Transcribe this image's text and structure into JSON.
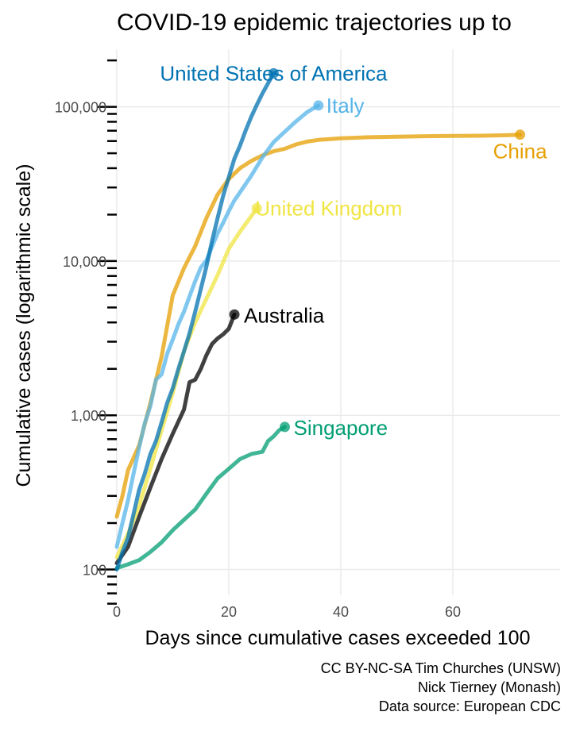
{
  "chart_data": {
    "type": "line",
    "title": "COVID-19 epidemic trajectories up to",
    "xlabel": "Days since cumulative cases exceeded 100",
    "ylabel": "Cumulative cases (logarithmic scale)",
    "y_scale": "log",
    "xlim": [
      0,
      80
    ],
    "ylim": [
      100,
      230000
    ],
    "x_ticks": [
      0,
      20,
      40,
      60
    ],
    "x_tick_labels": [
      "0",
      "20",
      "40",
      "60"
    ],
    "y_ticks": [
      100,
      1000,
      10000,
      100000
    ],
    "y_tick_labels": [
      "100",
      "1,000",
      "10,000",
      "100,000"
    ],
    "grid": true,
    "legend": "direct labels at line ends",
    "caption": [
      "CC BY-NC-SA Tim Churches (UNSW)",
      "Nick Tierney (Monash)",
      "Data source: European CDC"
    ],
    "series": [
      {
        "name": "China",
        "color": "#E69F00",
        "x": [
          0,
          1,
          2,
          4,
          6,
          8,
          10,
          12,
          14,
          16,
          18,
          20,
          22,
          24,
          26,
          28,
          30,
          32,
          34,
          36,
          40,
          45,
          50,
          55,
          60,
          65,
          70,
          72
        ],
        "y": [
          220,
          300,
          440,
          640,
          1200,
          2400,
          6000,
          9000,
          12500,
          19000,
          27000,
          34000,
          40000,
          44500,
          48500,
          51500,
          53500,
          57000,
          59500,
          61000,
          62500,
          63500,
          64000,
          64500,
          64700,
          65000,
          65500,
          66000
        ]
      },
      {
        "name": "United States of America",
        "color": "#0072B2",
        "x": [
          0,
          1,
          2,
          3,
          4,
          5,
          6,
          7,
          8,
          9,
          10,
          11,
          12,
          13,
          14,
          15,
          16,
          17,
          18,
          19,
          20,
          21,
          22,
          23,
          24,
          25,
          26,
          27,
          28
        ],
        "y": [
          100,
          130,
          160,
          230,
          330,
          420,
          560,
          680,
          900,
          1200,
          1500,
          2000,
          2600,
          3400,
          4700,
          6600,
          9200,
          13500,
          19000,
          26500,
          35000,
          46000,
          56000,
          70000,
          86000,
          103000,
          122000,
          142000,
          165000
        ]
      },
      {
        "name": "Italy",
        "color": "#56B4E9",
        "x": [
          0,
          1,
          2,
          3,
          4,
          5,
          6,
          7,
          8,
          9,
          10,
          11,
          12,
          13,
          14,
          15,
          16,
          17,
          18,
          19,
          20,
          21,
          22,
          24,
          26,
          28,
          30,
          32,
          34,
          36
        ],
        "y": [
          140,
          200,
          280,
          420,
          620,
          890,
          1150,
          1700,
          1840,
          2500,
          3100,
          3900,
          4700,
          5900,
          7400,
          9100,
          10100,
          12400,
          15100,
          17700,
          21100,
          24700,
          27900,
          35700,
          47000,
          59000,
          69000,
          80500,
          92500,
          102000
        ]
      },
      {
        "name": "United Kingdom",
        "color": "#F0E442",
        "x": [
          0,
          2,
          4,
          6,
          8,
          10,
          12,
          14,
          16,
          18,
          20,
          22,
          24,
          25
        ],
        "y": [
          120,
          170,
          260,
          450,
          800,
          1400,
          2600,
          4000,
          5700,
          8100,
          12000,
          15500,
          19500,
          22000
        ]
      },
      {
        "name": "Australia",
        "color": "#000000",
        "x": [
          0,
          2,
          4,
          6,
          8,
          10,
          12,
          13,
          14,
          15,
          16,
          17,
          18,
          19,
          20,
          21
        ],
        "y": [
          110,
          140,
          220,
          340,
          520,
          760,
          1090,
          1640,
          1700,
          2000,
          2450,
          2900,
          3150,
          3350,
          3640,
          4500
        ]
      },
      {
        "name": "Singapore",
        "color": "#009E73",
        "x": [
          0,
          2,
          4,
          6,
          8,
          10,
          12,
          14,
          16,
          18,
          20,
          22,
          24,
          26,
          27,
          28,
          29,
          30
        ],
        "y": [
          102,
          108,
          115,
          130,
          150,
          180,
          210,
          245,
          310,
          390,
          450,
          520,
          560,
          580,
          680,
          730,
          800,
          840
        ]
      }
    ]
  }
}
